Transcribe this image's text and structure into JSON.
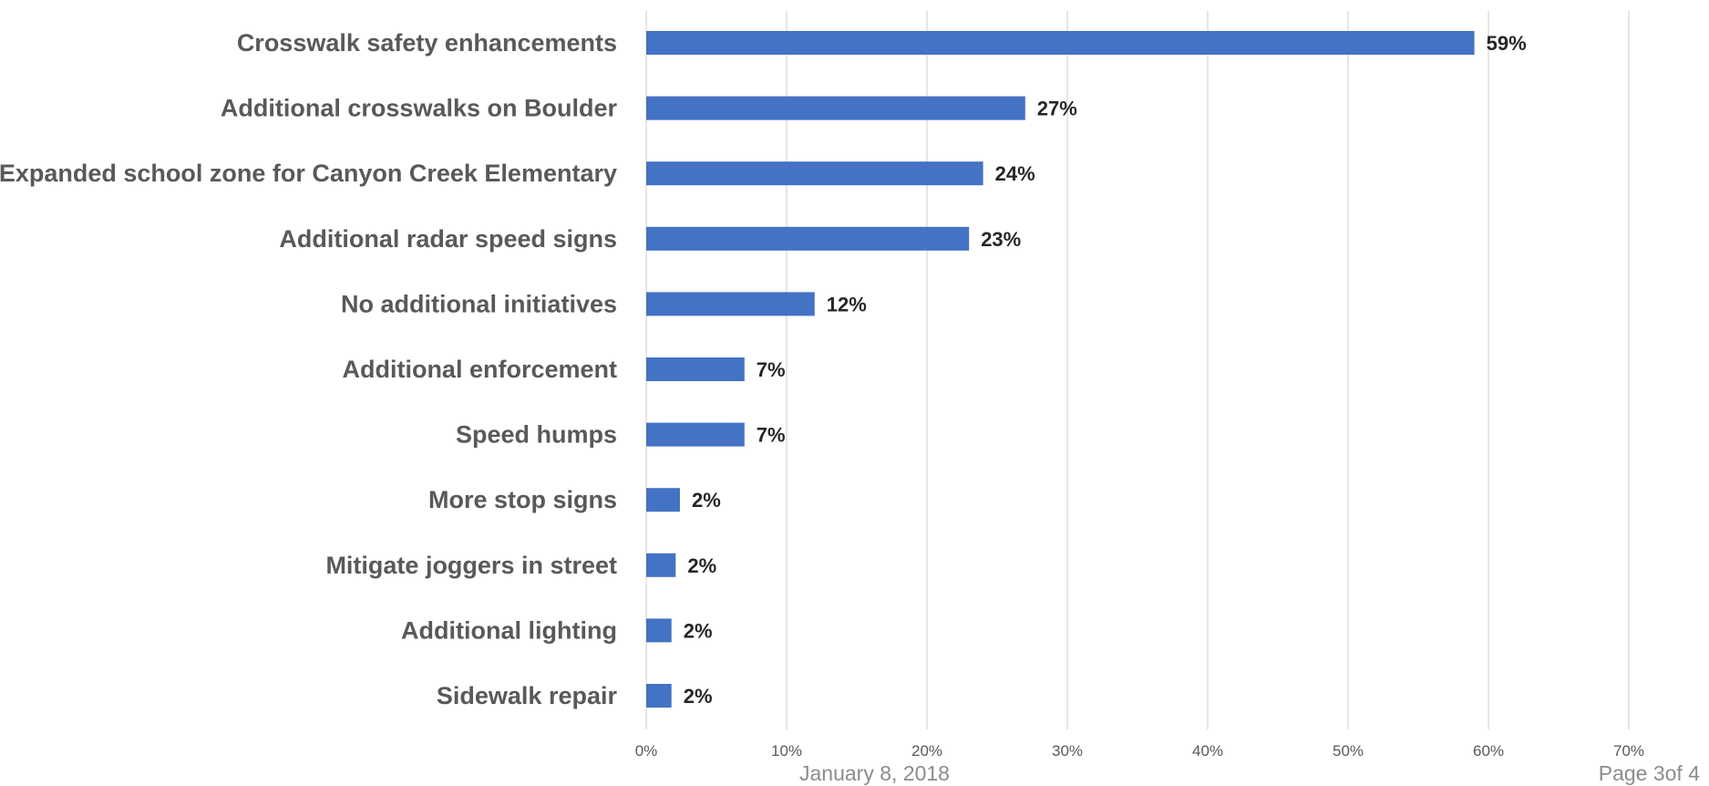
{
  "chart_data": {
    "type": "bar",
    "orientation": "horizontal",
    "categories": [
      "Crosswalk safety enhancements",
      "Additional crosswalks on Boulder",
      "Expanded school zone for Canyon Creek Elementary",
      "Additional radar speed signs",
      "No additional initiatives",
      "Additional enforcement",
      "Speed humps",
      "More stop signs",
      "Mitigate joggers in street",
      "Additional lighting",
      "Sidewalk repair"
    ],
    "values": [
      59,
      27,
      24,
      23,
      12,
      7,
      7,
      2.4,
      2.1,
      1.8,
      1.8
    ],
    "data_labels": [
      "59%",
      "27%",
      "24%",
      "23%",
      "12%",
      "7%",
      "7%",
      "2%",
      "2%",
      "2%",
      "2%"
    ],
    "x_ticks": [
      "0%",
      "10%",
      "20%",
      "30%",
      "40%",
      "50%",
      "60%",
      "70%"
    ],
    "xlim": [
      0,
      70
    ],
    "grid": "vertical",
    "bar_color": "#4472c4",
    "grid_color": "#d9d9d9"
  },
  "footer": {
    "date": "January 8, 2018",
    "page": "Page 3of 4"
  }
}
